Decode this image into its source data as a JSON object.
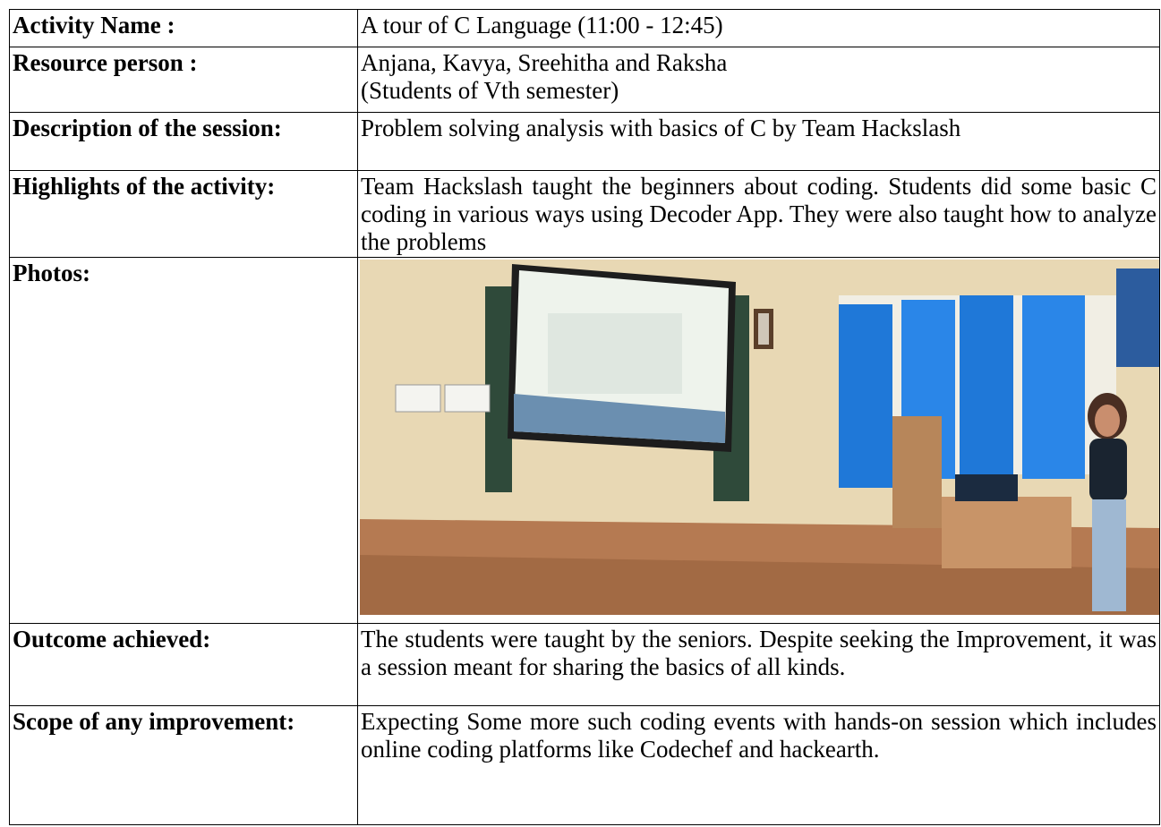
{
  "table": {
    "rows": [
      {
        "label": "Activity Name :",
        "value": [
          "A tour of  C Language (11:00 - 12:45)"
        ]
      },
      {
        "label": "Resource person :",
        "value": [
          "Anjana, Kavya, Sreehitha and Raksha",
          "(Students of Vth semester)"
        ]
      },
      {
        "label": "Description of the session:",
        "value": [
          "Problem solving analysis with basics of C by Team Hackslash"
        ]
      },
      {
        "label": "Highlights of the activity:",
        "value": [
          "Team Hackslash taught the beginners about coding. Students did some basic C coding in various ways using Decoder App. They were also taught how to analyze the problems"
        ]
      },
      {
        "label": "Photos:"
      },
      {
        "label": "Outcome achieved:",
        "value": [
          "The students were taught by the seniors. Despite seeking the Improvement, it was a session meant for sharing the basics of all kinds."
        ]
      },
      {
        "label": "Scope of any improvement:",
        "value": [
          "Expecting Some more such coding events with hands-on session which includes online coding platforms like Codechef and hackearth."
        ]
      }
    ]
  }
}
